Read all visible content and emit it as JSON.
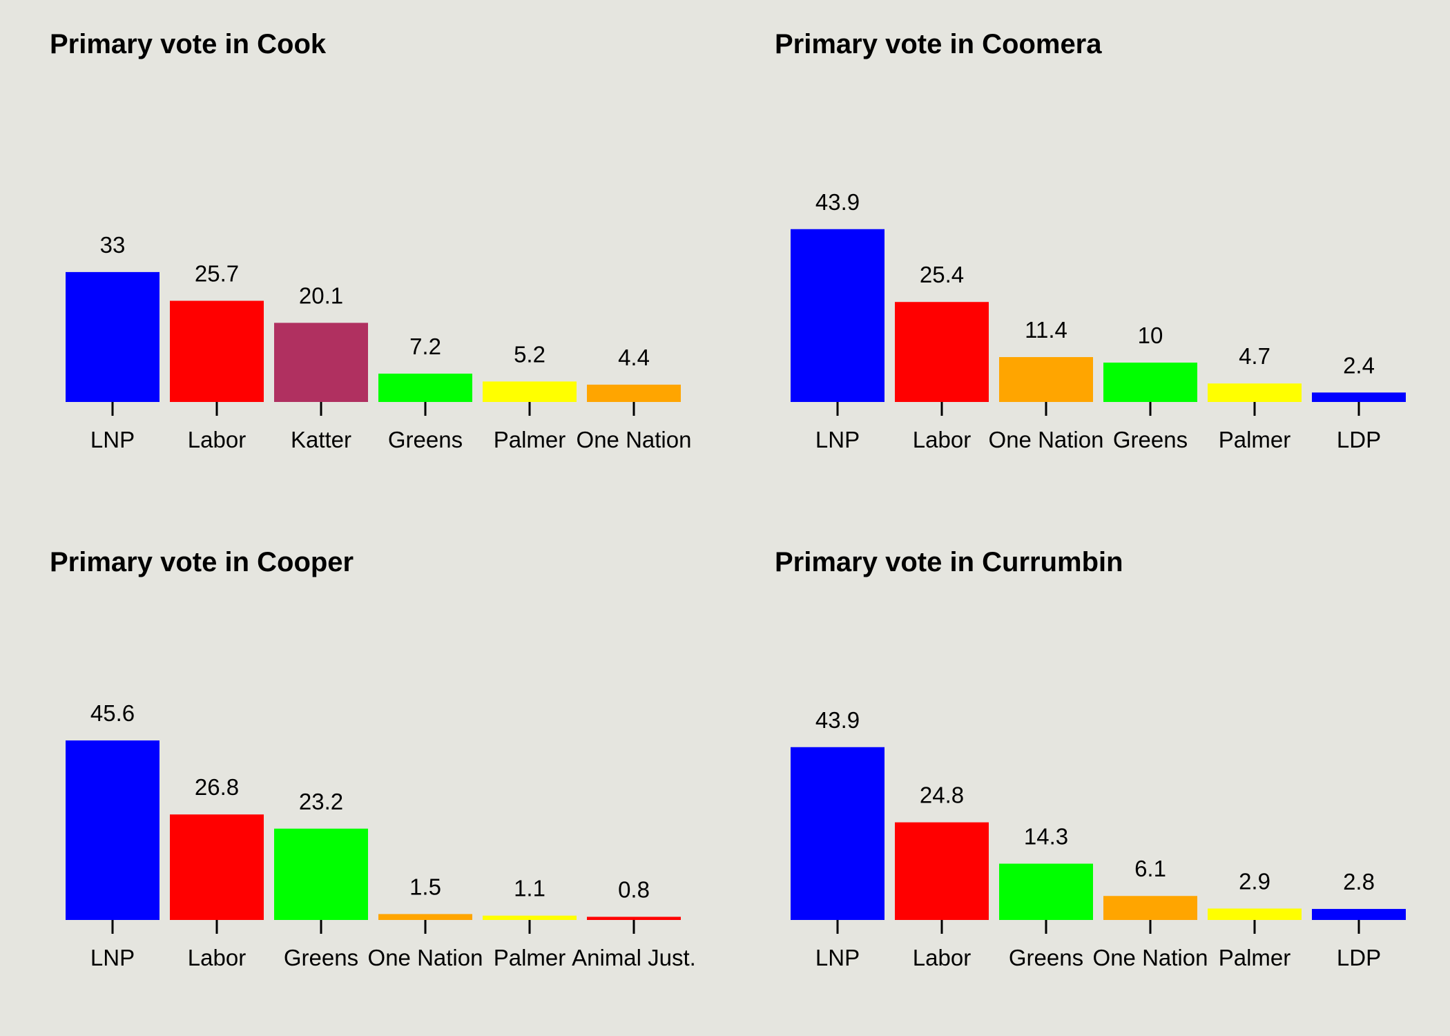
{
  "chart_data": [
    {
      "type": "bar",
      "title": "Primary vote in Cook",
      "categories": [
        "LNP",
        "Labor",
        "Katter",
        "Greens",
        "Palmer",
        "One Nation"
      ],
      "values": [
        33,
        25.7,
        20.1,
        7.2,
        5.2,
        4.4
      ],
      "value_labels": [
        "33",
        "25.7",
        "20.1",
        "7.2",
        "5.2",
        "4.4"
      ],
      "colors": [
        "#0000ff",
        "#ff0000",
        "#b03060",
        "#00ff00",
        "#ffff00",
        "#ffa500"
      ],
      "ylim": [
        0,
        50
      ],
      "grid": false,
      "yaxis_shown": false
    },
    {
      "type": "bar",
      "title": "Primary vote in Coomera",
      "categories": [
        "LNP",
        "Labor",
        "One Nation",
        "Greens",
        "Palmer",
        "LDP"
      ],
      "values": [
        43.9,
        25.4,
        11.4,
        10,
        4.7,
        2.4
      ],
      "value_labels": [
        "43.9",
        "25.4",
        "11.4",
        "10",
        "4.7",
        "2.4"
      ],
      "colors": [
        "#0000ff",
        "#ff0000",
        "#ffa500",
        "#00ff00",
        "#ffff00",
        "#0000ff"
      ],
      "ylim": [
        0,
        50
      ],
      "grid": false,
      "yaxis_shown": false
    },
    {
      "type": "bar",
      "title": "Primary vote in Cooper",
      "categories": [
        "LNP",
        "Labor",
        "Greens",
        "One Nation",
        "Palmer",
        "Animal Just."
      ],
      "values": [
        45.6,
        26.8,
        23.2,
        1.5,
        1.1,
        0.8
      ],
      "value_labels": [
        "45.6",
        "26.8",
        "23.2",
        "1.5",
        "1.1",
        "0.8"
      ],
      "colors": [
        "#0000ff",
        "#ff0000",
        "#00ff00",
        "#ffa500",
        "#ffff00",
        "#ff0000"
      ],
      "ylim": [
        0,
        50
      ],
      "grid": false,
      "yaxis_shown": false
    },
    {
      "type": "bar",
      "title": "Primary vote in Currumbin",
      "categories": [
        "LNP",
        "Labor",
        "Greens",
        "One Nation",
        "Palmer",
        "LDP"
      ],
      "values": [
        43.9,
        24.8,
        14.3,
        6.1,
        2.9,
        2.8
      ],
      "value_labels": [
        "43.9",
        "24.8",
        "14.3",
        "6.1",
        "2.9",
        "2.8"
      ],
      "colors": [
        "#0000ff",
        "#ff0000",
        "#00ff00",
        "#ffa500",
        "#ffff00",
        "#0000ff"
      ],
      "ylim": [
        0,
        50
      ],
      "grid": false,
      "yaxis_shown": false
    }
  ]
}
